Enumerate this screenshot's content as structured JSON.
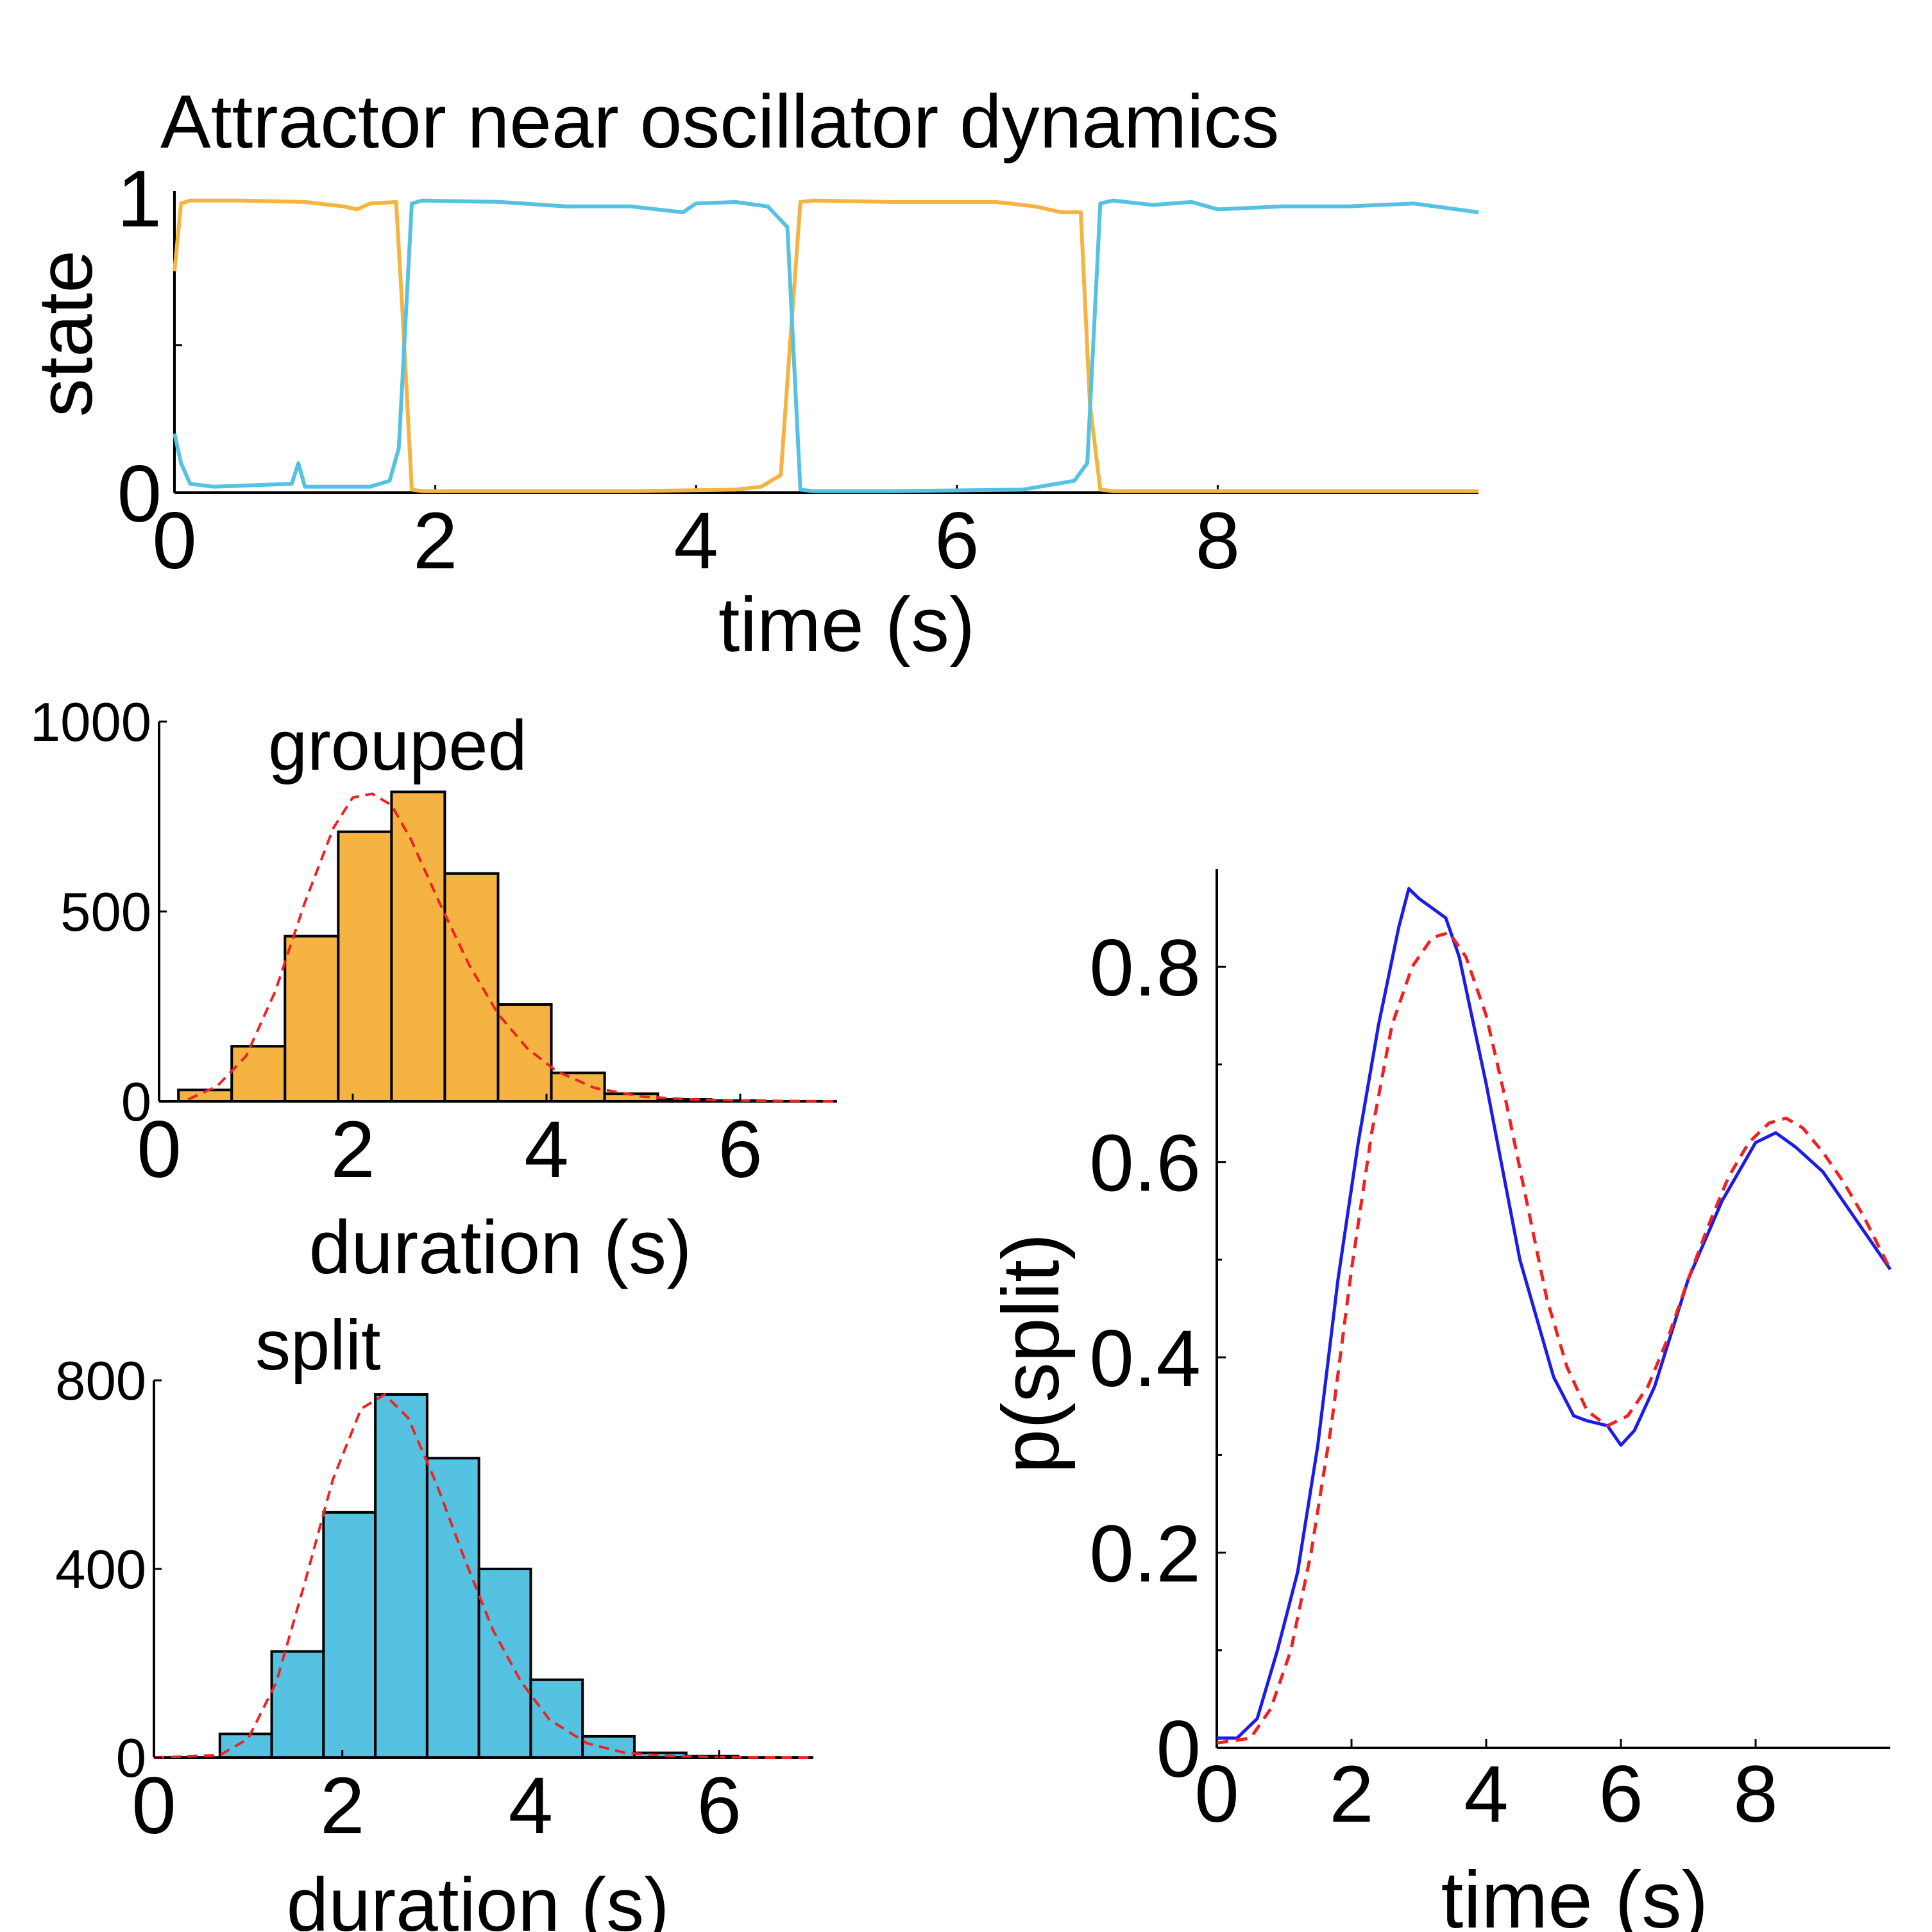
{
  "colors": {
    "orange": "#f5b342",
    "cyan": "#55c2e2",
    "fit_red": "#ee2222",
    "data_blue": "#1c1ce6"
  },
  "chart_data": [
    {
      "id": "state",
      "type": "line",
      "title": "Attractor near oscillator dynamics",
      "xlabel": "time (s)",
      "ylabel": "state",
      "xlim": [
        0,
        10
      ],
      "ylim": [
        0,
        1
      ],
      "xticks": [
        0,
        2,
        4,
        6,
        8
      ],
      "yticks": [
        0,
        1
      ],
      "series": [
        {
          "color": "orange",
          "x": [
            0,
            0.05,
            0.12,
            0.5,
            1.0,
            1.3,
            1.4,
            1.5,
            1.7,
            1.75,
            1.82,
            1.9,
            2.5,
            3.5,
            4.3,
            4.5,
            4.65,
            4.72,
            4.8,
            4.9,
            5.5,
            6.3,
            6.6,
            6.8,
            6.95,
            7.02,
            7.1,
            7.2,
            8.0,
            9.0,
            10.0
          ],
          "y": [
            0.75,
            0.98,
            0.99,
            0.99,
            0.985,
            0.97,
            0.96,
            0.98,
            0.985,
            0.6,
            0.01,
            0.005,
            0.005,
            0.005,
            0.01,
            0.02,
            0.06,
            0.5,
            0.985,
            0.99,
            0.985,
            0.985,
            0.97,
            0.95,
            0.95,
            0.3,
            0.01,
            0.005,
            0.005,
            0.005,
            0.005
          ]
        },
        {
          "color": "cyan",
          "x": [
            0,
            0.05,
            0.12,
            0.3,
            0.9,
            0.95,
            1.0,
            1.5,
            1.65,
            1.72,
            1.82,
            1.9,
            2.5,
            3.0,
            3.5,
            3.9,
            4.0,
            4.3,
            4.55,
            4.7,
            4.8,
            4.9,
            5.5,
            6.5,
            6.9,
            7.0,
            7.1,
            7.2,
            7.5,
            7.8,
            8.0,
            8.5,
            9.0,
            9.5,
            10.0
          ],
          "y": [
            0.2,
            0.1,
            0.03,
            0.02,
            0.03,
            0.1,
            0.02,
            0.02,
            0.04,
            0.15,
            0.98,
            0.99,
            0.985,
            0.97,
            0.97,
            0.95,
            0.98,
            0.985,
            0.97,
            0.9,
            0.01,
            0.005,
            0.005,
            0.01,
            0.04,
            0.1,
            0.98,
            0.99,
            0.975,
            0.985,
            0.96,
            0.97,
            0.97,
            0.98,
            0.95
          ]
        }
      ]
    },
    {
      "id": "grouped",
      "type": "bar",
      "title": "grouped",
      "xlabel": "duration (s)",
      "xlim": [
        0,
        7
      ],
      "ylim": [
        0,
        1000
      ],
      "xticks": [
        0,
        2,
        4,
        6
      ],
      "yticks": [
        0,
        500,
        1000
      ],
      "bin_edges": [
        0.2,
        0.75,
        1.3,
        1.85,
        2.4,
        2.95,
        3.5,
        4.05,
        4.6,
        5.15,
        5.7,
        6.25
      ],
      "values": [
        30,
        145,
        435,
        710,
        815,
        600,
        255,
        75,
        20,
        5,
        2
      ],
      "fill": "orange",
      "fit": {
        "color": "fit_red",
        "x": [
          0.3,
          0.6,
          0.9,
          1.2,
          1.5,
          1.8,
          2.0,
          2.2,
          2.4,
          2.6,
          2.9,
          3.2,
          3.5,
          3.8,
          4.1,
          4.5,
          5.0,
          5.5,
          6.0,
          6.5,
          7.0
        ],
        "y": [
          5,
          40,
          120,
          290,
          520,
          720,
          800,
          810,
          780,
          690,
          520,
          360,
          230,
          140,
          80,
          35,
          12,
          5,
          2,
          1,
          0
        ]
      }
    },
    {
      "id": "split",
      "type": "bar",
      "title": "split",
      "xlabel": "duration (s)",
      "xlim": [
        0,
        7
      ],
      "ylim": [
        0,
        800
      ],
      "xticks": [
        0,
        2,
        4,
        6
      ],
      "yticks": [
        0,
        400,
        800
      ],
      "bin_edges": [
        0.7,
        1.25,
        1.8,
        2.35,
        2.9,
        3.45,
        4.0,
        4.55,
        5.1,
        5.65,
        6.2
      ],
      "values": [
        50,
        225,
        520,
        770,
        635,
        400,
        165,
        45,
        10,
        3
      ],
      "fill": "cyan",
      "fit": {
        "color": "fit_red",
        "x": [
          0,
          0.7,
          1.0,
          1.3,
          1.6,
          1.9,
          2.2,
          2.45,
          2.7,
          3.0,
          3.3,
          3.6,
          3.9,
          4.2,
          4.6,
          5.0,
          5.5,
          6.0,
          6.5,
          7.0
        ],
        "y": [
          0,
          5,
          40,
          160,
          370,
          590,
          740,
          770,
          720,
          580,
          420,
          270,
          160,
          80,
          30,
          10,
          3,
          1,
          0,
          0
        ]
      }
    },
    {
      "id": "psplit",
      "type": "line",
      "xlabel": "time (s)",
      "ylabel": "p(split)",
      "xlim": [
        0,
        10
      ],
      "ylim": [
        0,
        0.9
      ],
      "xticks": [
        0,
        2,
        4,
        6,
        8
      ],
      "yticks": [
        0,
        0.2,
        0.4,
        0.6,
        0.8
      ],
      "series": [
        {
          "color": "data_blue",
          "style": "solid",
          "x": [
            0,
            0.3,
            0.6,
            0.9,
            1.2,
            1.5,
            1.8,
            2.1,
            2.4,
            2.7,
            2.85,
            3.0,
            3.2,
            3.4,
            3.6,
            4.0,
            4.5,
            5.0,
            5.3,
            5.5,
            5.8,
            6.0,
            6.2,
            6.5,
            7.0,
            7.5,
            8.0,
            8.3,
            8.6,
            9.0,
            9.5,
            10.0
          ],
          "y": [
            0.01,
            0.01,
            0.03,
            0.1,
            0.18,
            0.31,
            0.48,
            0.62,
            0.74,
            0.84,
            0.88,
            0.87,
            0.86,
            0.85,
            0.81,
            0.68,
            0.5,
            0.38,
            0.34,
            0.335,
            0.33,
            0.31,
            0.325,
            0.37,
            0.48,
            0.56,
            0.62,
            0.63,
            0.615,
            0.59,
            0.54,
            0.49
          ]
        },
        {
          "color": "fit_red",
          "style": "dashed",
          "x": [
            0,
            0.5,
            0.8,
            1.1,
            1.4,
            1.7,
            2.0,
            2.3,
            2.6,
            2.9,
            3.2,
            3.45,
            3.7,
            4.0,
            4.3,
            4.6,
            4.9,
            5.2,
            5.5,
            5.8,
            6.1,
            6.4,
            6.7,
            7.0,
            7.3,
            7.6,
            7.9,
            8.2,
            8.45,
            8.7,
            9.0,
            9.3,
            9.6,
            10.0
          ],
          "y": [
            0.005,
            0.01,
            0.04,
            0.1,
            0.2,
            0.33,
            0.49,
            0.63,
            0.74,
            0.8,
            0.83,
            0.835,
            0.81,
            0.75,
            0.66,
            0.56,
            0.46,
            0.39,
            0.345,
            0.33,
            0.34,
            0.37,
            0.42,
            0.48,
            0.535,
            0.585,
            0.62,
            0.64,
            0.645,
            0.635,
            0.61,
            0.58,
            0.545,
            0.49
          ]
        }
      ]
    }
  ]
}
